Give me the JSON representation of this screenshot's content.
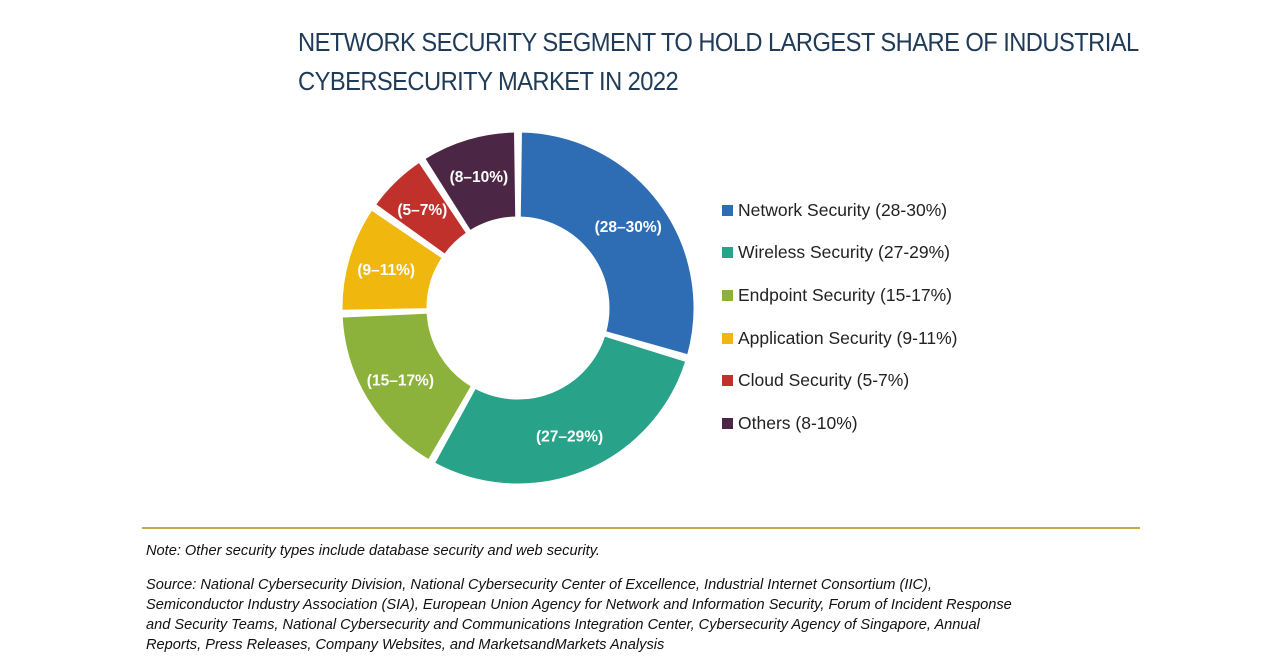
{
  "chart_data": {
    "type": "pie",
    "variant": "donut",
    "title_lines": [
      "NETWORK SECURITY SEGMENT TO HOLD LARGEST SHARE OF INDUSTRIAL",
      "CYBERSECURITY MARKET IN 2022"
    ],
    "slices": [
      {
        "name": "Network Security",
        "legend_label": "Network Security (28-30%)",
        "data_label": "(28–30%)",
        "value": 29,
        "color": "#2e6db4"
      },
      {
        "name": "Wireless Security",
        "legend_label": "Wireless Security (27-29%)",
        "data_label": "(27–29%)",
        "value": 28,
        "color": "#28a38a"
      },
      {
        "name": "Endpoint Security",
        "legend_label": "Endpoint Security (15-17%)",
        "data_label": "(15–17%)",
        "value": 16,
        "color": "#8cb23b"
      },
      {
        "name": "Application Security",
        "legend_label": "Application Security (9-11%)",
        "data_label": "(9–11%)",
        "value": 10,
        "color": "#f0b70f"
      },
      {
        "name": "Cloud Security",
        "legend_label": "Cloud Security (5-7%)",
        "data_label": "(5–7%)",
        "value": 6,
        "color": "#c0312c"
      },
      {
        "name": "Others",
        "legend_label": "Others (8-10%)",
        "data_label": "(8–10%)",
        "value": 9,
        "color": "#4b2745"
      }
    ],
    "legend_position": "right"
  },
  "footer": {
    "note": "Note: Other security types include database security and web security.",
    "source_lines": [
      "Source: National Cybersecurity Division, National Cybersecurity Center of Excellence, Industrial Internet Consortium (IIC),",
      "Semiconductor Industry Association (SIA), European Union Agency for Network and Information Security, Forum of Incident Response",
      "and Security Teams, National Cybersecurity and Communications Integration Center, Cybersecurity Agency of Singapore, Annual",
      "Reports, Press Releases, Company Websites, and MarketsandMarkets Analysis"
    ]
  }
}
